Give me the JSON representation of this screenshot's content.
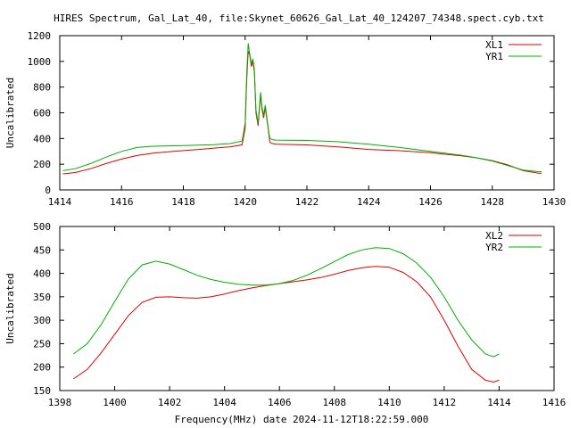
{
  "title": "HIRES Spectrum, Gal_Lat_40, file:Skynet_60626_Gal_Lat_40_124207_74348.spect.cyb.txt",
  "xlabel": "Frequency(MHz) date 2024-11-12T18:22:59.000",
  "chart_data": [
    {
      "type": "line",
      "ylabel": "Uncalibrated",
      "xlim": [
        1414,
        1430
      ],
      "ylim": [
        0,
        1200
      ],
      "xticks": [
        1414,
        1416,
        1418,
        1420,
        1422,
        1424,
        1426,
        1428,
        1430
      ],
      "yticks": [
        0,
        200,
        400,
        600,
        800,
        1000,
        1200
      ],
      "legend_position": "top-right",
      "series": [
        {
          "name": "XL1",
          "color": "#e00000",
          "points": [
            [
              1414.1,
              125
            ],
            [
              1414.5,
              135
            ],
            [
              1415.0,
              165
            ],
            [
              1415.5,
              205
            ],
            [
              1416.0,
              240
            ],
            [
              1416.5,
              268
            ],
            [
              1417.0,
              285
            ],
            [
              1417.5,
              297
            ],
            [
              1418.0,
              306
            ],
            [
              1418.5,
              315
            ],
            [
              1419.0,
              325
            ],
            [
              1419.5,
              335
            ],
            [
              1419.9,
              350
            ],
            [
              1420.0,
              480
            ],
            [
              1420.05,
              850
            ],
            [
              1420.1,
              1080
            ],
            [
              1420.15,
              1050
            ],
            [
              1420.2,
              960
            ],
            [
              1420.25,
              1000
            ],
            [
              1420.3,
              920
            ],
            [
              1420.35,
              600
            ],
            [
              1420.42,
              500
            ],
            [
              1420.5,
              740
            ],
            [
              1420.55,
              620
            ],
            [
              1420.6,
              560
            ],
            [
              1420.65,
              640
            ],
            [
              1420.75,
              470
            ],
            [
              1420.8,
              370
            ],
            [
              1420.9,
              360
            ],
            [
              1421.0,
              355
            ],
            [
              1422.0,
              350
            ],
            [
              1423.0,
              335
            ],
            [
              1424.0,
              315
            ],
            [
              1425.0,
              305
            ],
            [
              1426.0,
              290
            ],
            [
              1427.0,
              265
            ],
            [
              1427.5,
              250
            ],
            [
              1428.0,
              228
            ],
            [
              1428.5,
              195
            ],
            [
              1429.0,
              150
            ],
            [
              1429.5,
              130
            ],
            [
              1429.6,
              130
            ]
          ]
        },
        {
          "name": "YR1",
          "color": "#00b000",
          "points": [
            [
              1414.1,
              150
            ],
            [
              1414.5,
              165
            ],
            [
              1415.0,
              205
            ],
            [
              1415.5,
              255
            ],
            [
              1416.0,
              300
            ],
            [
              1416.5,
              330
            ],
            [
              1417.0,
              340
            ],
            [
              1417.5,
              343
            ],
            [
              1418.0,
              345
            ],
            [
              1418.5,
              348
            ],
            [
              1419.0,
              352
            ],
            [
              1419.5,
              360
            ],
            [
              1419.9,
              380
            ],
            [
              1420.0,
              520
            ],
            [
              1420.05,
              900
            ],
            [
              1420.1,
              1140
            ],
            [
              1420.15,
              1060
            ],
            [
              1420.2,
              980
            ],
            [
              1420.25,
              1020
            ],
            [
              1420.3,
              940
            ],
            [
              1420.35,
              620
            ],
            [
              1420.42,
              520
            ],
            [
              1420.5,
              760
            ],
            [
              1420.55,
              640
            ],
            [
              1420.6,
              580
            ],
            [
              1420.65,
              660
            ],
            [
              1420.75,
              480
            ],
            [
              1420.8,
              400
            ],
            [
              1420.9,
              390
            ],
            [
              1421.0,
              388
            ],
            [
              1422.0,
              385
            ],
            [
              1423.0,
              375
            ],
            [
              1424.0,
              355
            ],
            [
              1425.0,
              330
            ],
            [
              1426.0,
              300
            ],
            [
              1427.0,
              270
            ],
            [
              1427.5,
              250
            ],
            [
              1428.0,
              225
            ],
            [
              1428.5,
              190
            ],
            [
              1429.0,
              155
            ],
            [
              1429.5,
              142
            ],
            [
              1429.6,
              142
            ]
          ]
        }
      ]
    },
    {
      "type": "line",
      "ylabel": "Uncalibrated",
      "xlim": [
        1398,
        1416
      ],
      "ylim": [
        150,
        500
      ],
      "xticks": [
        1398,
        1400,
        1402,
        1404,
        1406,
        1408,
        1410,
        1412,
        1414,
        1416
      ],
      "yticks": [
        150,
        200,
        250,
        300,
        350,
        400,
        450,
        500
      ],
      "legend_position": "top-right",
      "series": [
        {
          "name": "XL2",
          "color": "#e00000",
          "points": [
            [
              1398.5,
              175
            ],
            [
              1399.0,
              195
            ],
            [
              1399.5,
              230
            ],
            [
              1400.0,
              270
            ],
            [
              1400.5,
              310
            ],
            [
              1401.0,
              338
            ],
            [
              1401.5,
              349
            ],
            [
              1402.0,
              350
            ],
            [
              1402.5,
              348
            ],
            [
              1403.0,
              347
            ],
            [
              1403.5,
              350
            ],
            [
              1404.0,
              356
            ],
            [
              1404.5,
              363
            ],
            [
              1405.0,
              369
            ],
            [
              1405.5,
              374
            ],
            [
              1406.0,
              378
            ],
            [
              1406.5,
              382
            ],
            [
              1407.0,
              386
            ],
            [
              1407.5,
              391
            ],
            [
              1408.0,
              398
            ],
            [
              1408.5,
              406
            ],
            [
              1409.0,
              412
            ],
            [
              1409.5,
              415
            ],
            [
              1410.0,
              413
            ],
            [
              1410.5,
              402
            ],
            [
              1411.0,
              382
            ],
            [
              1411.5,
              350
            ],
            [
              1412.0,
              300
            ],
            [
              1412.5,
              245
            ],
            [
              1413.0,
              195
            ],
            [
              1413.5,
              172
            ],
            [
              1413.8,
              168
            ],
            [
              1414.0,
              172
            ]
          ]
        },
        {
          "name": "YR2",
          "color": "#00b000",
          "points": [
            [
              1398.5,
              228
            ],
            [
              1399.0,
              250
            ],
            [
              1399.5,
              290
            ],
            [
              1400.0,
              340
            ],
            [
              1400.5,
              388
            ],
            [
              1401.0,
              418
            ],
            [
              1401.5,
              426
            ],
            [
              1402.0,
              420
            ],
            [
              1402.5,
              408
            ],
            [
              1403.0,
              396
            ],
            [
              1403.5,
              387
            ],
            [
              1404.0,
              381
            ],
            [
              1404.5,
              377
            ],
            [
              1405.0,
              375
            ],
            [
              1405.5,
              375
            ],
            [
              1406.0,
              378
            ],
            [
              1406.5,
              385
            ],
            [
              1407.0,
              396
            ],
            [
              1407.5,
              410
            ],
            [
              1408.0,
              425
            ],
            [
              1408.5,
              440
            ],
            [
              1409.0,
              450
            ],
            [
              1409.5,
              455
            ],
            [
              1410.0,
              453
            ],
            [
              1410.5,
              442
            ],
            [
              1411.0,
              422
            ],
            [
              1411.5,
              392
            ],
            [
              1412.0,
              350
            ],
            [
              1412.5,
              300
            ],
            [
              1413.0,
              258
            ],
            [
              1413.5,
              228
            ],
            [
              1413.8,
              222
            ],
            [
              1414.0,
              228
            ]
          ]
        }
      ]
    }
  ]
}
